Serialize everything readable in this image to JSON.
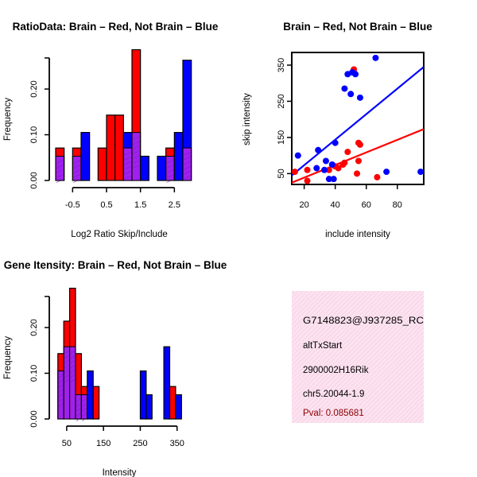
{
  "colors": {
    "brain": "#ff0000",
    "not_brain": "#0000ff",
    "overlap": "#a020f0",
    "panel_bg": "#fbe3f0",
    "pval": "#8b0000"
  },
  "chart_data": [
    {
      "type": "bar",
      "title": "RatioData: Brain – Red, Not Brain – Blue",
      "xlabel": "Log2 Ratio Skip/Include",
      "ylabel": "Frequency",
      "xlim": [
        -1.0,
        2.75
      ],
      "ylim": [
        0,
        0.28
      ],
      "bin_width": 0.25,
      "xticks": [
        -0.5,
        0.5,
        1.5,
        2.5
      ],
      "xtick_labels": [
        "-0.5",
        "0.5",
        "1.5",
        "2.5"
      ],
      "yticks": [
        0.0,
        0.1,
        0.2
      ],
      "ytick_labels": [
        "0.00",
        "0.10",
        "0.20"
      ],
      "series": [
        {
          "name": "Brain",
          "color": "red",
          "bins": [
            {
              "start": -1.0,
              "value": 0.071
            },
            {
              "start": -0.75,
              "value": 0.0
            },
            {
              "start": -0.5,
              "value": 0.071
            },
            {
              "start": -0.25,
              "value": 0.0
            },
            {
              "start": 0.0,
              "value": 0.0
            },
            {
              "start": 0.25,
              "value": 0.071
            },
            {
              "start": 0.5,
              "value": 0.143
            },
            {
              "start": 0.75,
              "value": 0.143
            },
            {
              "start": 1.0,
              "value": 0.071
            },
            {
              "start": 1.25,
              "value": 0.286
            },
            {
              "start": 1.5,
              "value": 0.0
            },
            {
              "start": 1.75,
              "value": 0.0
            },
            {
              "start": 2.0,
              "value": 0.0
            },
            {
              "start": 2.25,
              "value": 0.071
            },
            {
              "start": 2.5,
              "value": 0.0
            },
            {
              "start": 2.75,
              "value": 0.071
            }
          ]
        },
        {
          "name": "Not Brain",
          "color": "blue",
          "bins": [
            {
              "start": -1.0,
              "value": 0.053
            },
            {
              "start": -0.75,
              "value": 0.0
            },
            {
              "start": -0.5,
              "value": 0.053
            },
            {
              "start": -0.25,
              "value": 0.105
            },
            {
              "start": 0.0,
              "value": 0.0
            },
            {
              "start": 0.25,
              "value": 0.0
            },
            {
              "start": 0.5,
              "value": 0.0
            },
            {
              "start": 0.75,
              "value": 0.0
            },
            {
              "start": 1.0,
              "value": 0.105
            },
            {
              "start": 1.25,
              "value": 0.105
            },
            {
              "start": 1.5,
              "value": 0.053
            },
            {
              "start": 1.75,
              "value": 0.0
            },
            {
              "start": 2.0,
              "value": 0.053
            },
            {
              "start": 2.25,
              "value": 0.053
            },
            {
              "start": 2.5,
              "value": 0.105
            },
            {
              "start": 2.75,
              "value": 0.263
            }
          ]
        }
      ]
    },
    {
      "type": "scatter",
      "title": "Brain – Red, Not Brain – Blue",
      "xlabel": "include intensity",
      "ylabel": "skip intensity",
      "xlim": [
        12,
        97
      ],
      "ylim": [
        20,
        385
      ],
      "xticks": [
        20,
        40,
        60,
        80
      ],
      "xtick_labels": [
        "20",
        "40",
        "60",
        "80"
      ],
      "yticks": [
        50,
        150,
        250,
        350
      ],
      "ytick_labels": [
        "50",
        "150",
        "250",
        "350"
      ],
      "series": [
        {
          "name": "Brain",
          "color": "red",
          "points": [
            [
              14,
              55
            ],
            [
              22,
              30
            ],
            [
              22,
              60
            ],
            [
              36,
              60
            ],
            [
              40,
              70
            ],
            [
              42,
              65
            ],
            [
              45,
              75
            ],
            [
              46,
              80
            ],
            [
              48,
              110
            ],
            [
              52,
              338
            ],
            [
              54,
              50
            ],
            [
              55,
              85
            ],
            [
              55,
              135
            ],
            [
              56,
              130
            ],
            [
              67,
              40
            ]
          ],
          "fit_line": [
            [
              12,
              25
            ],
            [
              97,
              173
            ]
          ]
        },
        {
          "name": "Not Brain",
          "color": "blue",
          "points": [
            [
              16,
              100
            ],
            [
              28,
              65
            ],
            [
              29,
              115
            ],
            [
              33,
              60
            ],
            [
              34,
              85
            ],
            [
              36,
              35
            ],
            [
              38,
              75
            ],
            [
              39,
              35
            ],
            [
              40,
              135
            ],
            [
              46,
              285
            ],
            [
              48,
              325
            ],
            [
              50,
              270
            ],
            [
              51,
              330
            ],
            [
              53,
              325
            ],
            [
              56,
              260
            ],
            [
              66,
              370
            ],
            [
              73,
              55
            ],
            [
              95,
              55
            ]
          ],
          "fit_line": [
            [
              12,
              45
            ],
            [
              97,
              345
            ]
          ]
        }
      ]
    },
    {
      "type": "bar",
      "title": "Gene Itensity: Brain – Red, Not Brain – Blue",
      "xlabel": "Intensity",
      "ylabel": "Frequency",
      "xlim": [
        20,
        370
      ],
      "ylim": [
        0,
        0.28
      ],
      "bin_width": 16,
      "xticks": [
        50,
        150,
        250,
        350
      ],
      "xtick_labels": [
        "50",
        "150",
        "250",
        "350"
      ],
      "yticks": [
        0.0,
        0.1,
        0.2
      ],
      "ytick_labels": [
        "0.00",
        "0.10",
        "0.20"
      ],
      "series": [
        {
          "name": "Brain",
          "color": "red",
          "bins": [
            {
              "start": 26,
              "value": 0.143
            },
            {
              "start": 42,
              "value": 0.214
            },
            {
              "start": 58,
              "value": 0.286
            },
            {
              "start": 74,
              "value": 0.143
            },
            {
              "start": 90,
              "value": 0.071
            },
            {
              "start": 106,
              "value": 0.0
            },
            {
              "start": 122,
              "value": 0.071
            },
            {
              "start": 330,
              "value": 0.071
            }
          ]
        },
        {
          "name": "Not Brain",
          "color": "blue",
          "bins": [
            {
              "start": 26,
              "value": 0.105
            },
            {
              "start": 42,
              "value": 0.158
            },
            {
              "start": 58,
              "value": 0.158
            },
            {
              "start": 74,
              "value": 0.053
            },
            {
              "start": 90,
              "value": 0.053
            },
            {
              "start": 106,
              "value": 0.105
            },
            {
              "start": 122,
              "value": 0.0
            },
            {
              "start": 250,
              "value": 0.105
            },
            {
              "start": 266,
              "value": 0.053
            },
            {
              "start": 314,
              "value": 0.158
            },
            {
              "start": 346,
              "value": 0.053
            }
          ]
        }
      ]
    }
  ],
  "info_panel": {
    "probe_id": "G7148823@J937285_RC",
    "event_type": "altTxStart",
    "gene": "2900002H16Rik",
    "location": "chr5.20044-1.9",
    "pval": "Pval: 0.085681"
  }
}
